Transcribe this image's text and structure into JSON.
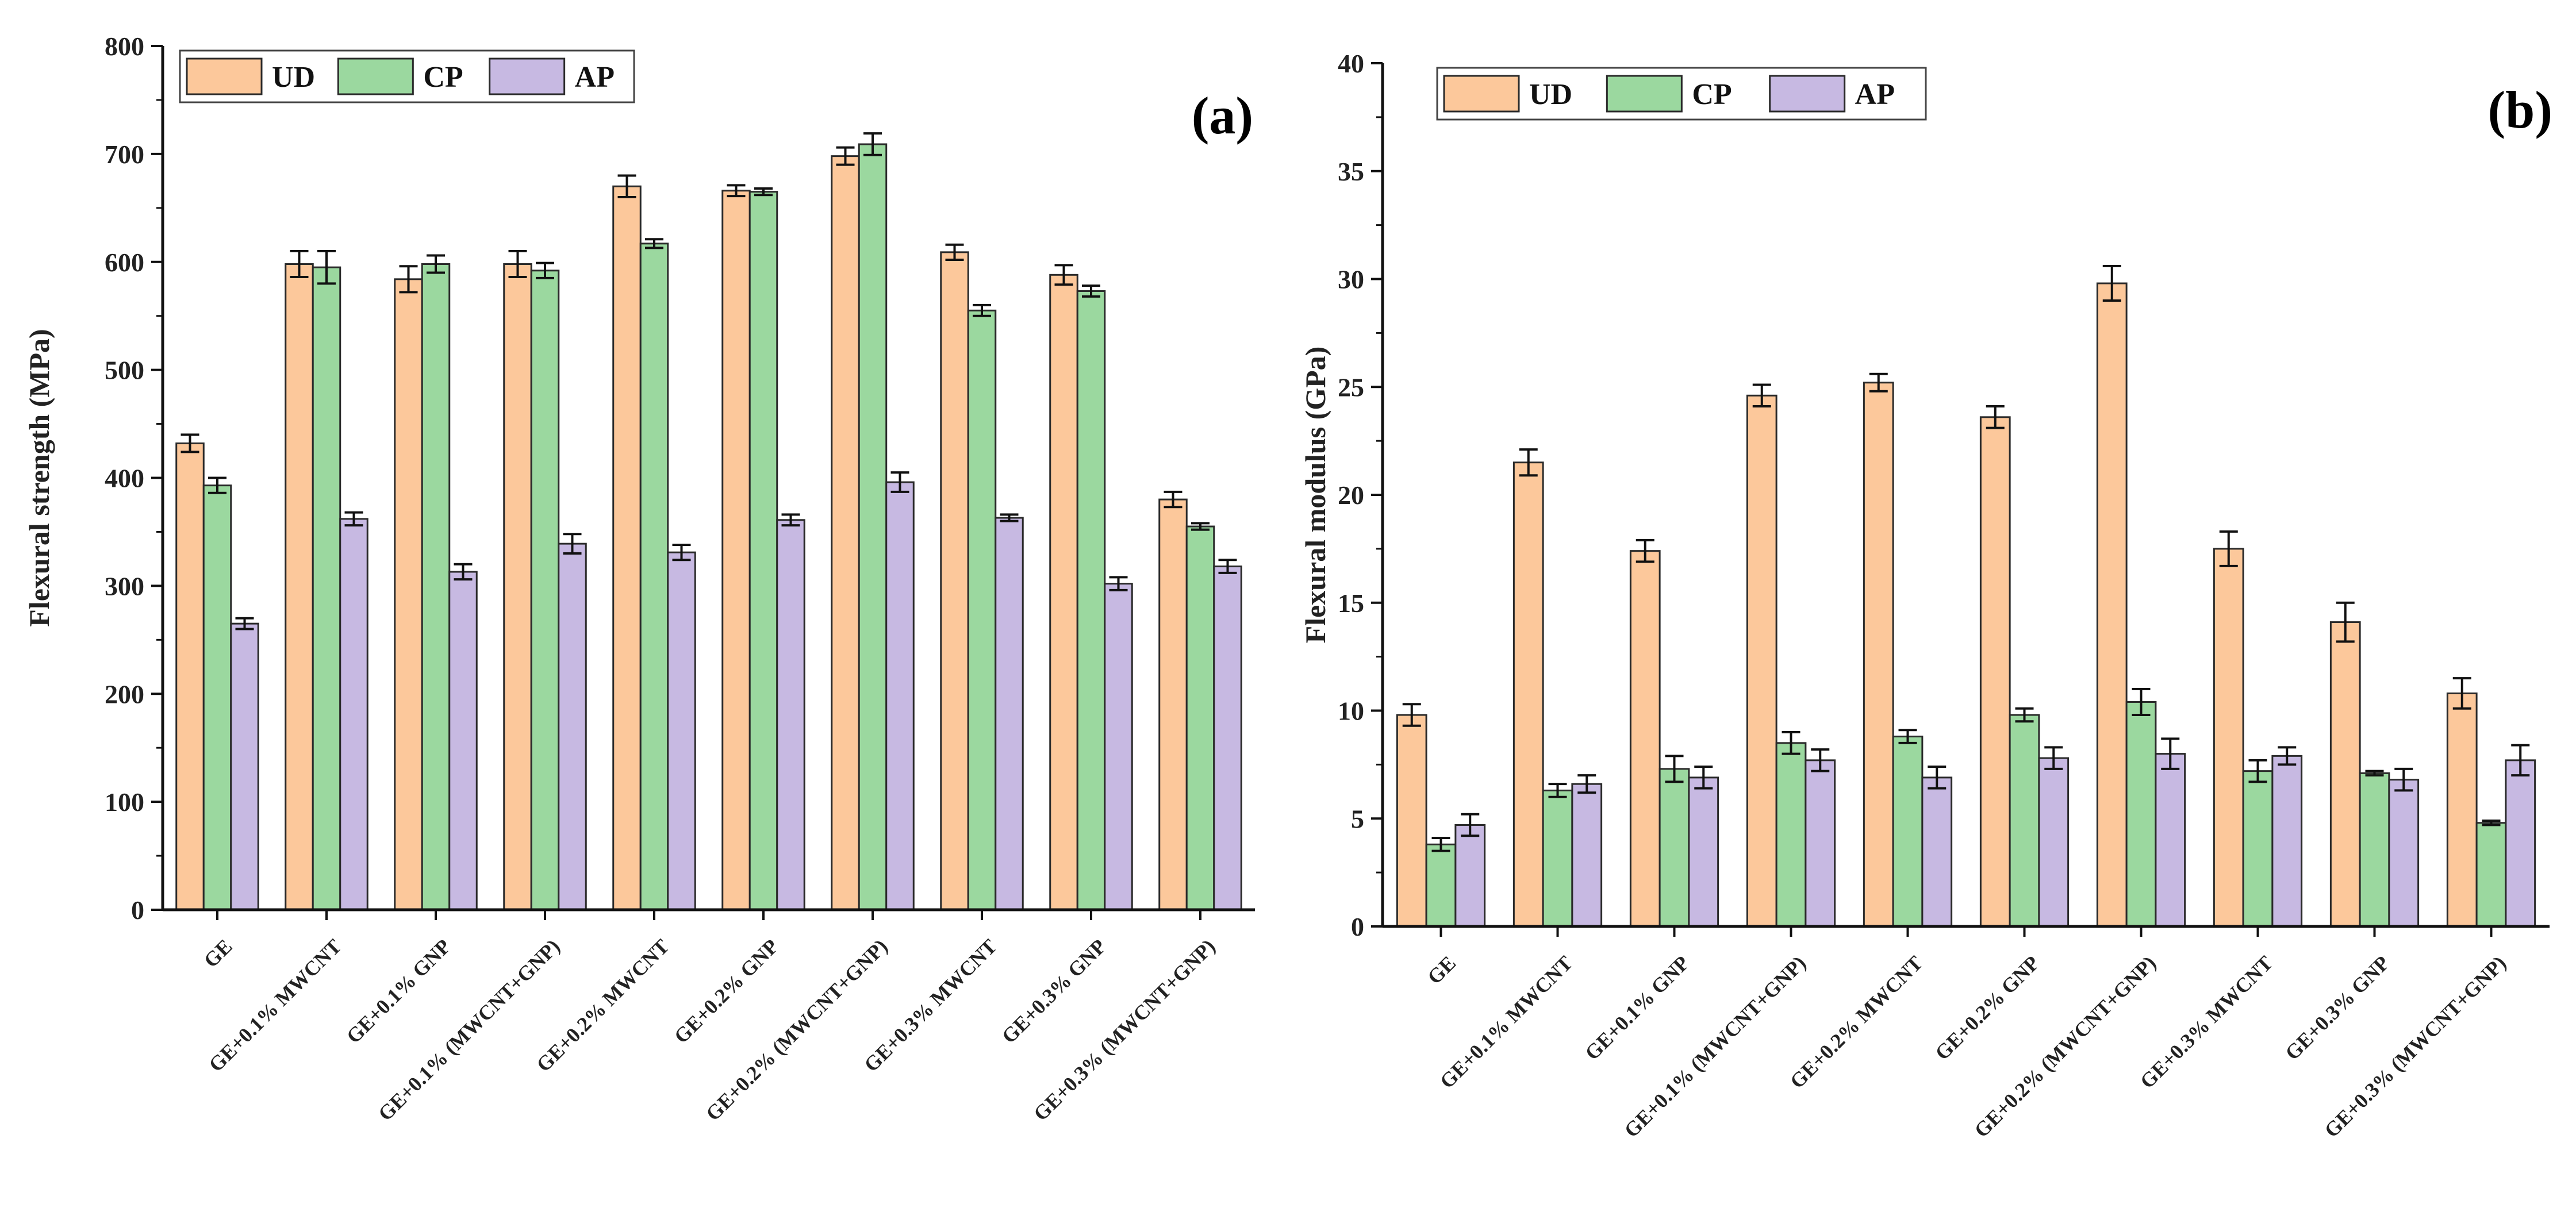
{
  "colors": {
    "UD": "#FCC89B",
    "CP": "#9BD89F",
    "AP": "#C7B9E2",
    "stroke": "#2a2a2a"
  },
  "chart_data": [
    {
      "type": "bar",
      "panel_label": "(a)",
      "title": "",
      "xlabel": "",
      "ylabel": "Flexural strength (MPa)",
      "ylim": [
        0,
        800
      ],
      "yticks": [
        0,
        100,
        200,
        300,
        400,
        500,
        600,
        700,
        800
      ],
      "legend_position": "top-left",
      "grid": false,
      "categories": [
        "GE",
        "GE+0.1% MWCNT",
        "GE+0.1% GNP",
        "GE+0.1% (MWCNT+GNP)",
        "GE+0.2% MWCNT",
        "GE+0.2% GNP",
        "GE+0.2% (MWCNT+GNP)",
        "GE+0.3% MWCNT",
        "GE+0.3% GNP",
        "GE+0.3% (MWCNT+GNP)"
      ],
      "series": [
        {
          "name": "UD",
          "values": [
            432,
            598,
            584,
            598,
            670,
            666,
            698,
            609,
            588,
            380
          ],
          "errors": [
            8,
            12,
            12,
            12,
            10,
            5,
            8,
            7,
            9,
            7
          ]
        },
        {
          "name": "CP",
          "values": [
            393,
            595,
            598,
            592,
            617,
            665,
            709,
            555,
            573,
            355
          ],
          "errors": [
            7,
            15,
            8,
            7,
            4,
            3,
            10,
            5,
            5,
            3
          ]
        },
        {
          "name": "AP",
          "values": [
            265,
            362,
            313,
            339,
            331,
            361,
            396,
            363,
            302,
            318
          ],
          "errors": [
            5,
            6,
            7,
            9,
            7,
            5,
            9,
            3,
            6,
            6
          ]
        }
      ]
    },
    {
      "type": "bar",
      "panel_label": "(b)",
      "title": "",
      "xlabel": "",
      "ylabel": "Flexural modulus (GPa)",
      "ylim": [
        0,
        40
      ],
      "yticks": [
        0,
        5,
        10,
        15,
        20,
        25,
        30,
        35,
        40
      ],
      "legend_position": "top-left",
      "grid": false,
      "categories": [
        "GE",
        "GE+0.1% MWCNT",
        "GE+0.1% GNP",
        "GE+0.1% (MWCNT+GNP)",
        "GE+0.2% MWCNT",
        "GE+0.2% GNP",
        "GE+0.2% (MWCNT+GNP)",
        "GE+0.3% MWCNT",
        "GE+0.3% GNP",
        "GE+0.3% (MWCNT+GNP)"
      ],
      "series": [
        {
          "name": "UD",
          "values": [
            9.8,
            21.5,
            17.4,
            24.6,
            25.2,
            23.6,
            29.8,
            17.5,
            14.1,
            10.8
          ],
          "errors": [
            0.5,
            0.6,
            0.5,
            0.5,
            0.4,
            0.5,
            0.8,
            0.8,
            0.9,
            0.7
          ]
        },
        {
          "name": "CP",
          "values": [
            3.8,
            6.3,
            7.3,
            8.5,
            8.8,
            9.8,
            10.4,
            7.2,
            7.1,
            4.8
          ],
          "errors": [
            0.3,
            0.3,
            0.6,
            0.5,
            0.3,
            0.3,
            0.6,
            0.5,
            0.1,
            0.1
          ]
        },
        {
          "name": "AP",
          "values": [
            4.7,
            6.6,
            6.9,
            7.7,
            6.9,
            7.8,
            8.0,
            7.9,
            6.8,
            7.7
          ],
          "errors": [
            0.5,
            0.4,
            0.5,
            0.5,
            0.5,
            0.5,
            0.7,
            0.4,
            0.5,
            0.7
          ]
        }
      ]
    }
  ]
}
